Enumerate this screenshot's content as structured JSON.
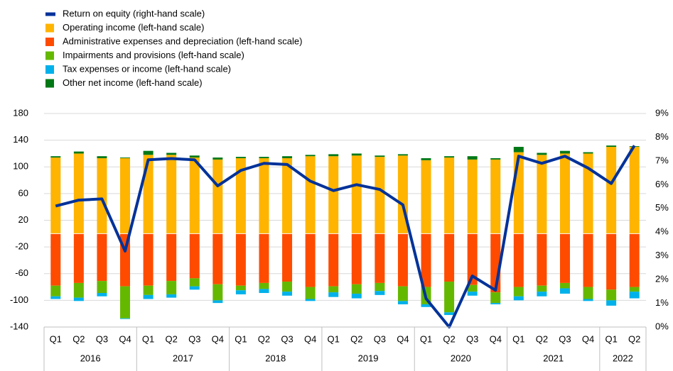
{
  "chart_data": {
    "type": "bar",
    "categories": [
      "Q1",
      "Q2",
      "Q3",
      "Q4",
      "Q1",
      "Q2",
      "Q3",
      "Q4",
      "Q1",
      "Q2",
      "Q3",
      "Q4",
      "Q1",
      "Q2",
      "Q3",
      "Q4",
      "Q1",
      "Q2",
      "Q3",
      "Q4",
      "Q1",
      "Q2",
      "Q3",
      "Q4",
      "Q1",
      "Q2"
    ],
    "years": [
      "2016",
      "2017",
      "2018",
      "2019",
      "2020",
      "2021",
      "2022"
    ],
    "series": [
      {
        "name": "Return on equity (right-hand scale)",
        "color": "#003299",
        "axis": "y2",
        "kind": "line",
        "values": [
          5.1,
          5.35,
          5.4,
          3.2,
          7.05,
          7.1,
          7.05,
          5.95,
          6.6,
          6.9,
          6.85,
          6.15,
          5.75,
          6.0,
          5.8,
          5.15,
          1.2,
          0.0,
          2.15,
          1.55,
          7.2,
          6.9,
          7.2,
          6.7,
          6.05,
          7.65
        ]
      },
      {
        "name": "Operating income (left-hand scale)",
        "color": "#ffb400",
        "values": [
          114,
          120,
          113,
          113,
          118,
          118,
          114,
          111,
          113,
          113,
          113,
          116,
          116,
          117,
          115,
          117,
          110,
          114,
          111,
          111,
          122,
          118,
          120,
          120,
          130,
          130
        ]
      },
      {
        "name": "Administrative expenses and depreciation (left-hand scale)",
        "color": "#ff4b00",
        "values": [
          -78,
          -74,
          -71,
          -79,
          -78,
          -71,
          -67,
          -76,
          -78,
          -74,
          -72,
          -80,
          -79,
          -76,
          -74,
          -79,
          -80,
          -72,
          -77,
          -88,
          -80,
          -78,
          -74,
          -80,
          -84,
          -80
        ]
      },
      {
        "name": "Impairments and provisions (left-hand scale)",
        "color": "#65b800",
        "values": [
          -16,
          -22,
          -18,
          -48,
          -14,
          -20,
          -12,
          -24,
          -7,
          -9,
          -15,
          -18,
          -9,
          -14,
          -12,
          -22,
          -26,
          -46,
          -10,
          -16,
          -14,
          -9,
          -8,
          -18,
          -16,
          -7
        ]
      },
      {
        "name": "Tax expenses or income (left-hand scale)",
        "color": "#00b1ea",
        "values": [
          -4,
          -5,
          -5,
          -1,
          -6,
          -5,
          -5,
          -4,
          -6,
          -6,
          -6,
          -3,
          -7,
          -7,
          -6,
          -5,
          -4,
          -4,
          -6,
          -2,
          -6,
          -7,
          -8,
          -3,
          -8,
          -10
        ]
      },
      {
        "name": "Other net income (left-hand scale)",
        "color": "#007816",
        "values": [
          2,
          3,
          3,
          1,
          6,
          3,
          3,
          3,
          2,
          2,
          3,
          2,
          3,
          3,
          2,
          2,
          3,
          2,
          5,
          2,
          8,
          3,
          4,
          2,
          2,
          1
        ]
      }
    ],
    "ylim": [
      -140,
      180
    ],
    "yticks": [
      -140,
      -100,
      -60,
      -20,
      20,
      60,
      100,
      140,
      180
    ],
    "y2lim": [
      0,
      9
    ],
    "y2ticks": [
      {
        "value": 0,
        "label": "0%"
      },
      {
        "value": 1,
        "label": "1%"
      },
      {
        "value": 2,
        "label": "2%"
      },
      {
        "value": 3,
        "label": "3%"
      },
      {
        "value": 4,
        "label": "4%"
      },
      {
        "value": 5,
        "label": "5%"
      },
      {
        "value": 6,
        "label": "6%"
      },
      {
        "value": 7,
        "label": "7%"
      },
      {
        "value": 8,
        "label": "8%"
      },
      {
        "value": 9,
        "label": "9%"
      }
    ],
    "grid": true,
    "legend": "top-left"
  }
}
